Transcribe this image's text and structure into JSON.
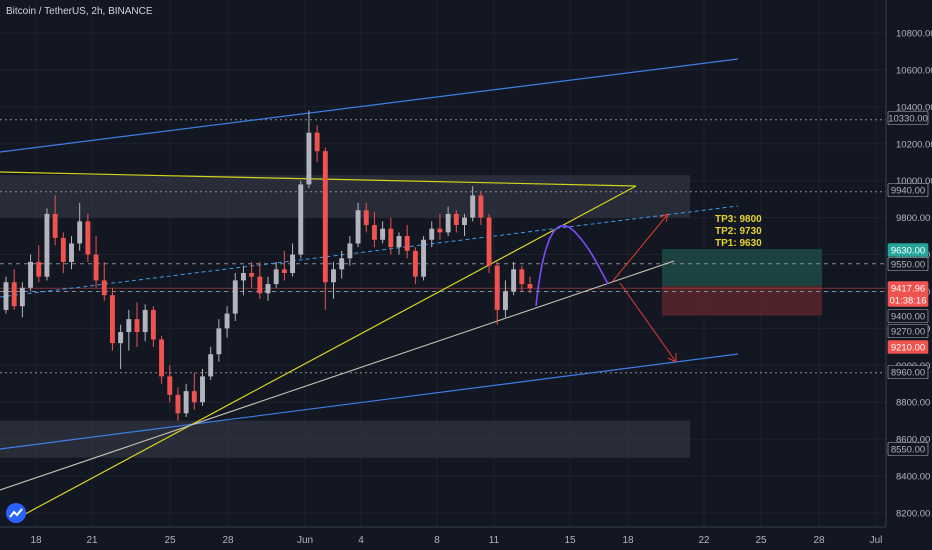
{
  "header": {
    "title": "Bitcoin / TetherUS, 2h, BINANCE"
  },
  "chart_data": {
    "type": "candlestick",
    "symbol": "BTCUSDT",
    "interval": "2h",
    "exchange": "BINANCE",
    "ylim": [
      8150,
      10950
    ],
    "y_ticks": [
      8200,
      8400,
      8600,
      8800,
      9000,
      9200,
      9400,
      9600,
      9800,
      10000,
      10200,
      10400,
      10600,
      10800
    ],
    "x_ticks": [
      "18",
      "21",
      "25",
      "28",
      "Jun",
      "4",
      "8",
      "11",
      "15",
      "18",
      "22",
      "25",
      "28",
      "Jul"
    ],
    "price_labels": [
      {
        "text": "10330.00",
        "value": 10330,
        "style": "dotted"
      },
      {
        "text": "9940.00",
        "value": 9940,
        "style": "dotted"
      },
      {
        "text": "9630.00",
        "value": 9630,
        "style": "green"
      },
      {
        "text": "9550.00",
        "value": 9550,
        "style": "dashed"
      },
      {
        "text": "9417.96",
        "value": 9417.96,
        "style": "red"
      },
      {
        "text": "01:38:16",
        "value": 9370,
        "style": "red"
      },
      {
        "text": "9400.00",
        "value": 9400,
        "style": "dashed"
      },
      {
        "text": "9270.00",
        "value": 9270,
        "style": "plain"
      },
      {
        "text": "9210.00",
        "value": 9210,
        "style": "red"
      },
      {
        "text": "8960.00",
        "value": 8960,
        "style": "dotted"
      },
      {
        "text": "8550.00",
        "value": 8550,
        "style": "plain"
      }
    ],
    "annotations": [
      "TP3: 9800",
      "TP2: 9730",
      "TP1: 9630"
    ],
    "candles": [
      {
        "o": 9300,
        "h": 9480,
        "l": 9280,
        "c": 9450
      },
      {
        "o": 9450,
        "h": 9520,
        "l": 9300,
        "c": 9320
      },
      {
        "o": 9320,
        "h": 9450,
        "l": 9260,
        "c": 9420
      },
      {
        "o": 9420,
        "h": 9600,
        "l": 9400,
        "c": 9560
      },
      {
        "o": 9560,
        "h": 9650,
        "l": 9450,
        "c": 9480
      },
      {
        "o": 9480,
        "h": 9850,
        "l": 9460,
        "c": 9820
      },
      {
        "o": 9820,
        "h": 9920,
        "l": 9650,
        "c": 9690
      },
      {
        "o": 9690,
        "h": 9720,
        "l": 9500,
        "c": 9560
      },
      {
        "o": 9560,
        "h": 9700,
        "l": 9520,
        "c": 9660
      },
      {
        "o": 9660,
        "h": 9880,
        "l": 9620,
        "c": 9780
      },
      {
        "o": 9780,
        "h": 9820,
        "l": 9560,
        "c": 9600
      },
      {
        "o": 9600,
        "h": 9700,
        "l": 9420,
        "c": 9460
      },
      {
        "o": 9460,
        "h": 9560,
        "l": 9350,
        "c": 9380
      },
      {
        "o": 9380,
        "h": 9420,
        "l": 9080,
        "c": 9120
      },
      {
        "o": 9120,
        "h": 9220,
        "l": 8980,
        "c": 9180
      },
      {
        "o": 9180,
        "h": 9300,
        "l": 9080,
        "c": 9250
      },
      {
        "o": 9250,
        "h": 9340,
        "l": 9100,
        "c": 9180
      },
      {
        "o": 9180,
        "h": 9330,
        "l": 9130,
        "c": 9300
      },
      {
        "o": 9300,
        "h": 9320,
        "l": 9100,
        "c": 9140
      },
      {
        "o": 9140,
        "h": 9160,
        "l": 8900,
        "c": 8940
      },
      {
        "o": 8940,
        "h": 9000,
        "l": 8800,
        "c": 8840
      },
      {
        "o": 8840,
        "h": 8880,
        "l": 8700,
        "c": 8740
      },
      {
        "o": 8740,
        "h": 8900,
        "l": 8720,
        "c": 8860
      },
      {
        "o": 8860,
        "h": 8960,
        "l": 8760,
        "c": 8800
      },
      {
        "o": 8800,
        "h": 8980,
        "l": 8780,
        "c": 8940
      },
      {
        "o": 8940,
        "h": 9100,
        "l": 8920,
        "c": 9060
      },
      {
        "o": 9060,
        "h": 9250,
        "l": 9020,
        "c": 9200
      },
      {
        "o": 9200,
        "h": 9320,
        "l": 9150,
        "c": 9280
      },
      {
        "o": 9280,
        "h": 9500,
        "l": 9240,
        "c": 9460
      },
      {
        "o": 9460,
        "h": 9540,
        "l": 9380,
        "c": 9500
      },
      {
        "o": 9500,
        "h": 9560,
        "l": 9420,
        "c": 9480
      },
      {
        "o": 9480,
        "h": 9560,
        "l": 9360,
        "c": 9390
      },
      {
        "o": 9390,
        "h": 9480,
        "l": 9350,
        "c": 9440
      },
      {
        "o": 9440,
        "h": 9560,
        "l": 9420,
        "c": 9520
      },
      {
        "o": 9520,
        "h": 9620,
        "l": 9460,
        "c": 9500
      },
      {
        "o": 9500,
        "h": 9660,
        "l": 9480,
        "c": 9600
      },
      {
        "o": 9600,
        "h": 10000,
        "l": 9580,
        "c": 9980
      },
      {
        "o": 9980,
        "h": 10380,
        "l": 9960,
        "c": 10260
      },
      {
        "o": 10260,
        "h": 10300,
        "l": 10100,
        "c": 10160
      },
      {
        "o": 10160,
        "h": 10180,
        "l": 9300,
        "c": 9450
      },
      {
        "o": 9450,
        "h": 9560,
        "l": 9360,
        "c": 9520
      },
      {
        "o": 9520,
        "h": 9620,
        "l": 9470,
        "c": 9580
      },
      {
        "o": 9580,
        "h": 9700,
        "l": 9540,
        "c": 9660
      },
      {
        "o": 9660,
        "h": 9880,
        "l": 9640,
        "c": 9840
      },
      {
        "o": 9840,
        "h": 9880,
        "l": 9720,
        "c": 9760
      },
      {
        "o": 9760,
        "h": 9830,
        "l": 9640,
        "c": 9680
      },
      {
        "o": 9680,
        "h": 9780,
        "l": 9660,
        "c": 9740
      },
      {
        "o": 9740,
        "h": 9800,
        "l": 9600,
        "c": 9640
      },
      {
        "o": 9640,
        "h": 9720,
        "l": 9600,
        "c": 9700
      },
      {
        "o": 9700,
        "h": 9760,
        "l": 9580,
        "c": 9620
      },
      {
        "o": 9620,
        "h": 9640,
        "l": 9440,
        "c": 9480
      },
      {
        "o": 9480,
        "h": 9700,
        "l": 9460,
        "c": 9680
      },
      {
        "o": 9680,
        "h": 9780,
        "l": 9640,
        "c": 9740
      },
      {
        "o": 9740,
        "h": 9820,
        "l": 9680,
        "c": 9720
      },
      {
        "o": 9720,
        "h": 9860,
        "l": 9700,
        "c": 9820
      },
      {
        "o": 9820,
        "h": 9840,
        "l": 9720,
        "c": 9760
      },
      {
        "o": 9760,
        "h": 9820,
        "l": 9700,
        "c": 9800
      },
      {
        "o": 9800,
        "h": 9970,
        "l": 9780,
        "c": 9920
      },
      {
        "o": 9920,
        "h": 9940,
        "l": 9760,
        "c": 9800
      },
      {
        "o": 9800,
        "h": 9820,
        "l": 9500,
        "c": 9540
      },
      {
        "o": 9540,
        "h": 9560,
        "l": 9220,
        "c": 9300
      },
      {
        "o": 9300,
        "h": 9460,
        "l": 9260,
        "c": 9400
      },
      {
        "o": 9400,
        "h": 9560,
        "l": 9380,
        "c": 9520
      },
      {
        "o": 9520,
        "h": 9540,
        "l": 9400,
        "c": 9440
      },
      {
        "o": 9440,
        "h": 9480,
        "l": 9390,
        "c": 9418
      }
    ]
  }
}
